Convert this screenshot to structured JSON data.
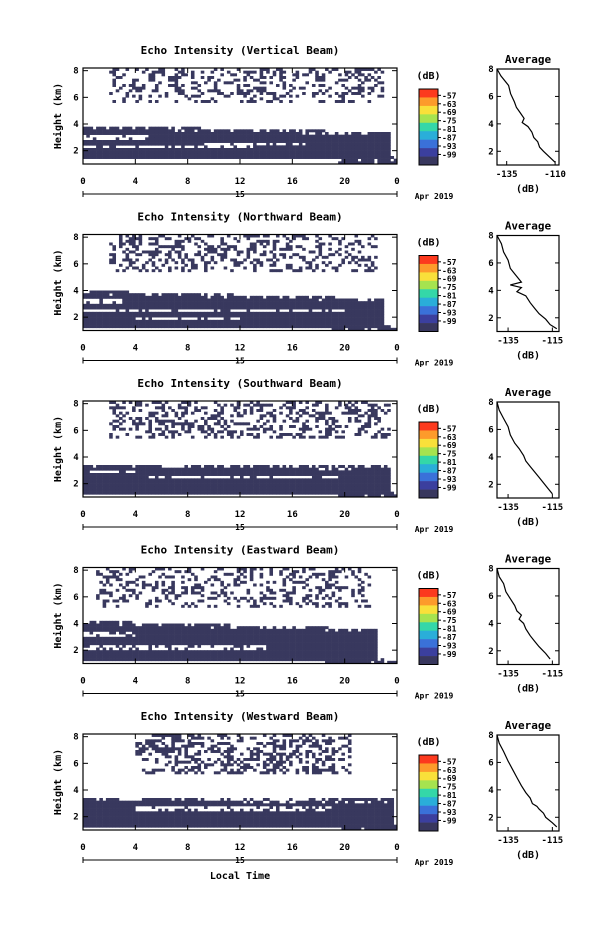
{
  "figure": {
    "xlabel": "Local Time",
    "date_label": "Apr 2019",
    "day_label": "15"
  },
  "colormap": {
    "unit": "(dB)",
    "ticks": [
      "-57",
      "-63",
      "-69",
      "-75",
      "-81",
      "-87",
      "-93",
      "-99"
    ],
    "colors": [
      "#fc3a1e",
      "#fd9b2b",
      "#f9e03a",
      "#a6e34f",
      "#34d7a8",
      "#2aaed9",
      "#3a71d9",
      "#3b3f9e",
      "#38375e"
    ],
    "fill_color": "#38385e"
  },
  "chart_data": [
    {
      "type": "heatmap",
      "title": "Echo Intensity (Vertical Beam)",
      "ylabel": "Height (km)",
      "xlim": [
        0,
        24
      ],
      "ylim": [
        1,
        8.2
      ],
      "xticks": [
        "0",
        "4",
        "8",
        "12",
        "16",
        "20",
        "0"
      ],
      "yticks": [
        "2",
        "4",
        "6",
        "8"
      ],
      "layer": {
        "bottom": 1.3,
        "top_start": 3.9,
        "top_end": 3.4,
        "end_hour": 23.5
      },
      "gaps": [
        [
          0,
          13,
          2.3
        ],
        [
          9,
          17,
          2.5
        ],
        [
          0,
          5,
          3.0
        ]
      ],
      "upper": {
        "start": 2,
        "end": 23,
        "min": 5.6,
        "max": 8.2,
        "density": 0.3
      },
      "profile": {
        "title": "Average",
        "xlabel": "(dB)",
        "xticks": [
          "-135",
          "-110"
        ],
        "xlim": [
          -140,
          -108
        ],
        "ylim": [
          1,
          8
        ],
        "yticks": [
          "2",
          "4",
          "6",
          "8"
        ],
        "points": [
          [
            -140,
            8
          ],
          [
            -138,
            7.5
          ],
          [
            -134,
            6.8
          ],
          [
            -133,
            6.2
          ],
          [
            -131,
            5.6
          ],
          [
            -130,
            5.2
          ],
          [
            -128,
            4.8
          ],
          [
            -126,
            4.4
          ],
          [
            -127,
            4.1
          ],
          [
            -124,
            3.8
          ],
          [
            -122,
            3.4
          ],
          [
            -121,
            3.0
          ],
          [
            -119,
            2.7
          ],
          [
            -118,
            2.3
          ],
          [
            -116,
            2.0
          ],
          [
            -113,
            1.6
          ],
          [
            -110,
            1.2
          ]
        ]
      }
    },
    {
      "type": "heatmap",
      "title": "Echo Intensity (Northward Beam)",
      "ylabel": "Height (km)",
      "xlim": [
        0,
        24
      ],
      "ylim": [
        1,
        8.2
      ],
      "xticks": [
        "0",
        "4",
        "8",
        "12",
        "16",
        "20",
        "0"
      ],
      "yticks": [
        "2",
        "4",
        "6",
        "8"
      ],
      "layer": {
        "bottom": 1.2,
        "top_start": 4.0,
        "top_end": 3.4,
        "end_hour": 23.0
      },
      "gaps": [
        [
          0,
          20,
          2.5
        ],
        [
          4,
          12,
          1.9
        ],
        [
          0,
          3,
          3.2
        ]
      ],
      "upper": {
        "start": 2,
        "end": 22.5,
        "min": 5.5,
        "max": 8.2,
        "density": 0.35
      },
      "profile": {
        "title": "Average",
        "xlabel": "(dB)",
        "xticks": [
          "-135",
          "-115"
        ],
        "xlim": [
          -140,
          -112
        ],
        "ylim": [
          1,
          8
        ],
        "yticks": [
          "2",
          "4",
          "6",
          "8"
        ],
        "points": [
          [
            -140,
            8
          ],
          [
            -138,
            7.4
          ],
          [
            -137,
            6.8
          ],
          [
            -135,
            6.2
          ],
          [
            -134,
            5.6
          ],
          [
            -132,
            5.2
          ],
          [
            -129,
            4.6
          ],
          [
            -134,
            4.4
          ],
          [
            -129,
            4.2
          ],
          [
            -131,
            3.9
          ],
          [
            -127,
            3.6
          ],
          [
            -125,
            3.1
          ],
          [
            -123,
            2.7
          ],
          [
            -121,
            2.3
          ],
          [
            -118,
            1.9
          ],
          [
            -116,
            1.5
          ],
          [
            -113,
            1.2
          ]
        ]
      }
    },
    {
      "type": "heatmap",
      "title": "Echo Intensity (Southward Beam)",
      "ylabel": "Height (km)",
      "xlim": [
        0,
        24
      ],
      "ylim": [
        1,
        8.2
      ],
      "xticks": [
        "0",
        "4",
        "8",
        "12",
        "16",
        "20",
        "0"
      ],
      "yticks": [
        "2",
        "4",
        "6",
        "8"
      ],
      "layer": {
        "bottom": 1.2,
        "top_start": 3.5,
        "top_end": 3.3,
        "end_hour": 23.5
      },
      "gaps": [
        [
          5,
          20,
          2.5
        ],
        [
          0,
          4,
          2.9
        ]
      ],
      "upper": {
        "start": 2,
        "end": 23.5,
        "min": 5.5,
        "max": 8.2,
        "density": 0.35
      },
      "profile": {
        "title": "Average",
        "xlabel": "(dB)",
        "xticks": [
          "-135",
          "-115"
        ],
        "xlim": [
          -140,
          -112
        ],
        "ylim": [
          1,
          8
        ],
        "yticks": [
          "2",
          "4",
          "6",
          "8"
        ],
        "points": [
          [
            -140,
            8
          ],
          [
            -139,
            7.4
          ],
          [
            -137,
            6.8
          ],
          [
            -135,
            6.2
          ],
          [
            -134,
            5.6
          ],
          [
            -132,
            5.0
          ],
          [
            -130,
            4.6
          ],
          [
            -128,
            4.1
          ],
          [
            -127,
            3.7
          ],
          [
            -125,
            3.3
          ],
          [
            -123,
            2.9
          ],
          [
            -121,
            2.5
          ],
          [
            -119,
            2.1
          ],
          [
            -117,
            1.7
          ],
          [
            -115,
            1.3
          ]
        ]
      }
    },
    {
      "type": "heatmap",
      "title": "Echo Intensity (Eastward Beam)",
      "ylabel": "Height (km)",
      "xlim": [
        0,
        24
      ],
      "ylim": [
        1,
        8.2
      ],
      "xticks": [
        "0",
        "4",
        "8",
        "12",
        "16",
        "20",
        "0"
      ],
      "yticks": [
        "2",
        "4",
        "6",
        "8"
      ],
      "layer": {
        "bottom": 1.2,
        "top_start": 4.2,
        "top_end": 3.6,
        "end_hour": 22.5
      },
      "gaps": [
        [
          0,
          14,
          2.2
        ],
        [
          0,
          4,
          3.2
        ]
      ],
      "upper": {
        "start": 1,
        "end": 22,
        "min": 5.3,
        "max": 8.2,
        "density": 0.3
      },
      "profile": {
        "title": "Average",
        "xlabel": "(dB)",
        "xticks": [
          "-135",
          "-115"
        ],
        "xlim": [
          -140,
          -112
        ],
        "ylim": [
          1,
          8
        ],
        "yticks": [
          "2",
          "4",
          "6",
          "8"
        ],
        "points": [
          [
            -140,
            8
          ],
          [
            -139,
            7.4
          ],
          [
            -137,
            6.9
          ],
          [
            -136,
            6.3
          ],
          [
            -134,
            5.8
          ],
          [
            -132,
            5.3
          ],
          [
            -131,
            4.9
          ],
          [
            -129,
            4.6
          ],
          [
            -130,
            4.3
          ],
          [
            -128,
            4.0
          ],
          [
            -127,
            3.6
          ],
          [
            -125,
            3.1
          ],
          [
            -123,
            2.7
          ],
          [
            -121,
            2.3
          ],
          [
            -118,
            1.8
          ],
          [
            -116,
            1.4
          ]
        ]
      }
    },
    {
      "type": "heatmap",
      "title": "Echo Intensity (Westward Beam)",
      "ylabel": "Height (km)",
      "xlim": [
        0,
        24
      ],
      "ylim": [
        1,
        8.2
      ],
      "xticks": [
        "0",
        "4",
        "8",
        "12",
        "16",
        "20",
        "0"
      ],
      "yticks": [
        "2",
        "4",
        "6",
        "8"
      ],
      "layer": {
        "bottom": 1.2,
        "top_start": 3.4,
        "top_end": 3.3,
        "end_hour": 23.8
      },
      "gaps": [
        [
          4,
          19,
          2.6
        ],
        [
          9,
          17,
          3.3
        ]
      ],
      "upper": {
        "start": 4,
        "end": 20.5,
        "min": 5.3,
        "max": 8.2,
        "density": 0.38
      },
      "profile": {
        "title": "Average",
        "xlabel": "(dB)",
        "xticks": [
          "-135",
          "-115"
        ],
        "xlim": [
          -140,
          -112
        ],
        "ylim": [
          1,
          8
        ],
        "yticks": [
          "2",
          "4",
          "6",
          "8"
        ],
        "points": [
          [
            -140,
            8
          ],
          [
            -139,
            7.4
          ],
          [
            -137,
            6.8
          ],
          [
            -135,
            6.1
          ],
          [
            -133,
            5.5
          ],
          [
            -131,
            4.9
          ],
          [
            -129,
            4.3
          ],
          [
            -127,
            3.8
          ],
          [
            -125,
            3.4
          ],
          [
            -124,
            3.0
          ],
          [
            -122,
            2.8
          ],
          [
            -121,
            2.6
          ],
          [
            -119,
            2.3
          ],
          [
            -118,
            2.0
          ],
          [
            -115,
            1.6
          ],
          [
            -113,
            1.3
          ]
        ]
      }
    }
  ]
}
